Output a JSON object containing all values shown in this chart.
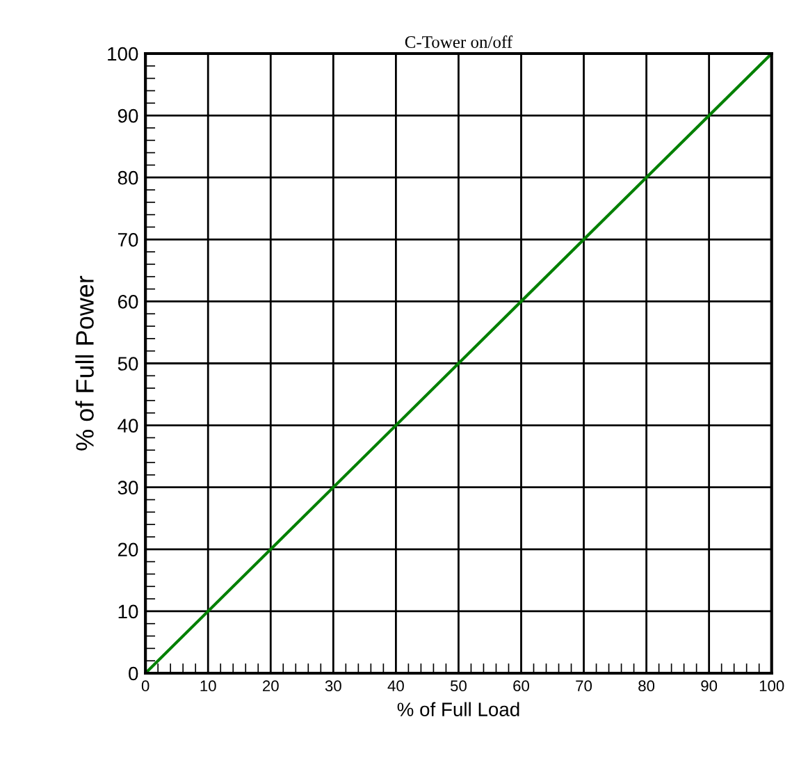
{
  "chart_data": {
    "type": "line",
    "title": "C-Tower on/off",
    "xlabel": "% of Full Load",
    "ylabel": "% of Full Power",
    "x": [
      0,
      100
    ],
    "series": [
      {
        "color": "#008000",
        "values": [
          0,
          100
        ]
      }
    ],
    "xlim": [
      0,
      100
    ],
    "ylim": [
      0,
      100
    ],
    "xticks": [
      0,
      10,
      20,
      30,
      40,
      50,
      60,
      70,
      80,
      90,
      100
    ],
    "yticks": [
      0,
      10,
      20,
      30,
      40,
      50,
      60,
      70,
      80,
      90,
      100
    ],
    "grid": true,
    "legend": false,
    "marker": "none",
    "line_style": "solid"
  }
}
